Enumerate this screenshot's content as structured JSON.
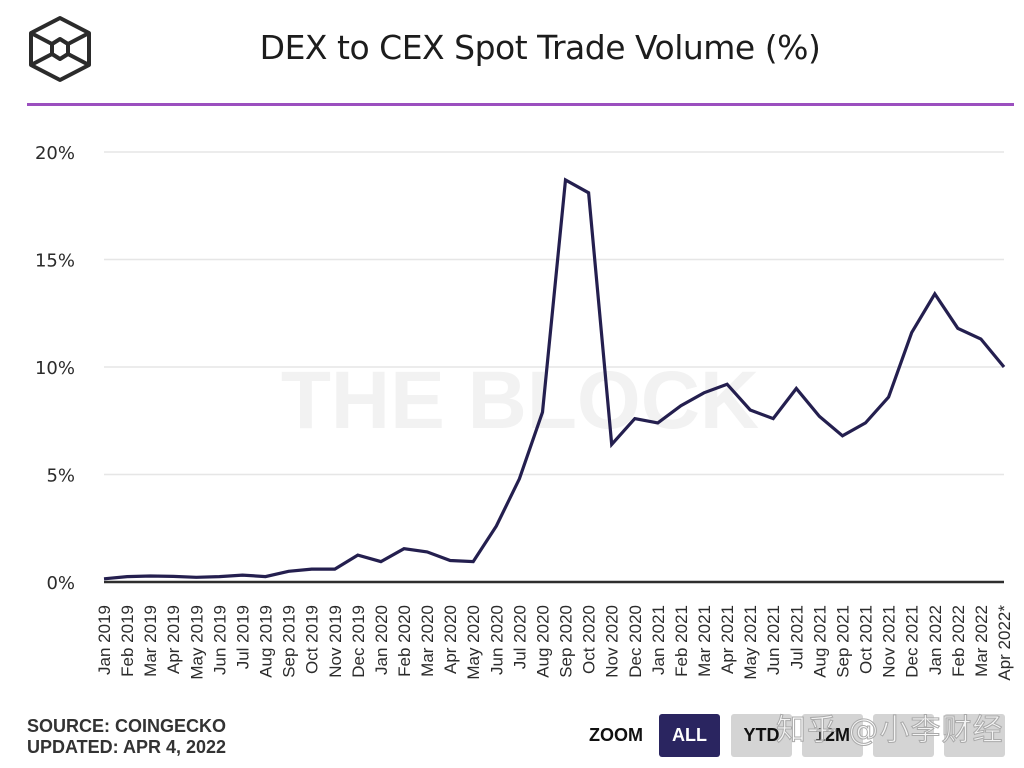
{
  "header": {
    "title": "DEX to CEX Spot Trade Volume (%)",
    "logo": "the-block-cube-logo"
  },
  "colors": {
    "line": "#241f4f",
    "accent_rule": "#9b4fbf",
    "active_button": "#2a2560",
    "inactive_button": "#d4d4d4",
    "grid": "#e6e6e6"
  },
  "watermark": "THE BLOCK",
  "overlay_watermark": "知乎 @小李财经",
  "chart_data": {
    "type": "line",
    "title": "DEX to CEX Spot Trade Volume (%)",
    "xlabel": "",
    "ylabel": "",
    "ylim": [
      0,
      20
    ],
    "yticks": [
      0,
      5,
      10,
      15,
      20
    ],
    "ytick_labels": [
      "0%",
      "5%",
      "10%",
      "15%",
      "20%"
    ],
    "grid": true,
    "legend": "none",
    "x": [
      "Jan 2019",
      "Feb 2019",
      "Mar 2019",
      "Apr 2019",
      "May 2019",
      "Jun 2019",
      "Jul 2019",
      "Aug 2019",
      "Sep 2019",
      "Oct 2019",
      "Nov 2019",
      "Dec 2019",
      "Jan 2020",
      "Feb 2020",
      "Mar 2020",
      "Apr 2020",
      "May 2020",
      "Jun 2020",
      "Jul 2020",
      "Aug 2020",
      "Sep 2020",
      "Oct 2020",
      "Nov 2020",
      "Dec 2020",
      "Jan 2021",
      "Feb 2021",
      "Mar 2021",
      "Apr 2021",
      "May 2021",
      "Jun 2021",
      "Jul 2021",
      "Aug 2021",
      "Sep 2021",
      "Oct 2021",
      "Nov 2021",
      "Dec 2021",
      "Jan 2022",
      "Feb 2022",
      "Mar 2022",
      "Apr 2022*"
    ],
    "series": [
      {
        "name": "DEX to CEX Spot Trade Volume (%)",
        "values": [
          0.15,
          0.25,
          0.28,
          0.26,
          0.22,
          0.25,
          0.32,
          0.25,
          0.5,
          0.6,
          0.6,
          1.25,
          0.95,
          1.55,
          1.4,
          1.0,
          0.95,
          2.6,
          4.8,
          7.9,
          18.7,
          18.1,
          6.4,
          7.6,
          7.4,
          8.2,
          8.8,
          9.2,
          8.0,
          7.6,
          9.0,
          7.7,
          6.8,
          7.4,
          8.6,
          11.6,
          13.4,
          11.8,
          11.3,
          10.0
        ]
      }
    ]
  },
  "footer": {
    "source": "SOURCE: COINGECKO",
    "updated": "UPDATED: APR 4, 2022"
  },
  "zoom": {
    "label": "ZOOM",
    "buttons": [
      {
        "label": "ALL",
        "active": true
      },
      {
        "label": "YTD",
        "active": false
      },
      {
        "label": "12M",
        "active": false
      },
      {
        "label": "",
        "active": false
      },
      {
        "label": "",
        "active": false
      }
    ]
  }
}
